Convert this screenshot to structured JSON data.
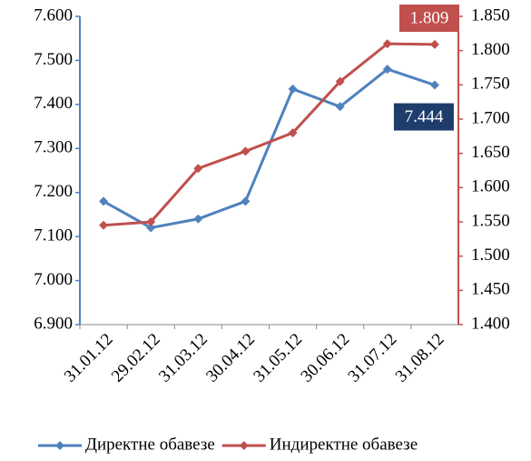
{
  "chart_data": {
    "type": "line",
    "categories": [
      "31.01.12",
      "29.02.12",
      "31.03.12",
      "30.04.12",
      "31.05.12",
      "30.06.12",
      "31.07.12",
      "31.08.12"
    ],
    "series": [
      {
        "name": "Директне обавезе",
        "color": "#4f81bd",
        "axis": "y",
        "values": [
          7180,
          7120,
          7140,
          7180,
          7435,
          7395,
          7480,
          7444
        ],
        "value_labels": [
          null,
          null,
          null,
          null,
          null,
          null,
          null,
          "7.444"
        ],
        "label_color": "#1f3d6b"
      },
      {
        "name": "Индиректне обавезе",
        "color": "#c0504d",
        "axis": "y2",
        "values": [
          1545,
          1550,
          1628,
          1653,
          1680,
          1755,
          1810,
          1809
        ],
        "value_labels": [
          null,
          null,
          null,
          null,
          null,
          null,
          null,
          "1.809"
        ],
        "label_color": "#c0504d"
      }
    ],
    "ylim": [
      6900,
      7600
    ],
    "yticks": [
      {
        "value": 6900,
        "label": "6.900"
      },
      {
        "value": 7000,
        "label": "7.000"
      },
      {
        "value": 7100,
        "label": "7.100"
      },
      {
        "value": 7200,
        "label": "7.200"
      },
      {
        "value": 7300,
        "label": "7.300"
      },
      {
        "value": 7400,
        "label": "7.400"
      },
      {
        "value": 7500,
        "label": "7.500"
      },
      {
        "value": 7600,
        "label": "7.600"
      }
    ],
    "y2lim": [
      1400,
      1850
    ],
    "y2ticks": [
      {
        "value": 1400,
        "label": "1.400"
      },
      {
        "value": 1450,
        "label": "1.450"
      },
      {
        "value": 1500,
        "label": "1.500"
      },
      {
        "value": 1550,
        "label": "1.550"
      },
      {
        "value": 1600,
        "label": "1.600"
      },
      {
        "value": 1650,
        "label": "1.650"
      },
      {
        "value": 1700,
        "label": "1.700"
      },
      {
        "value": 1750,
        "label": "1.750"
      },
      {
        "value": 1800,
        "label": "1.800"
      },
      {
        "value": 1850,
        "label": "1.850"
      }
    ],
    "legend": "bottom",
    "grid": false
  }
}
